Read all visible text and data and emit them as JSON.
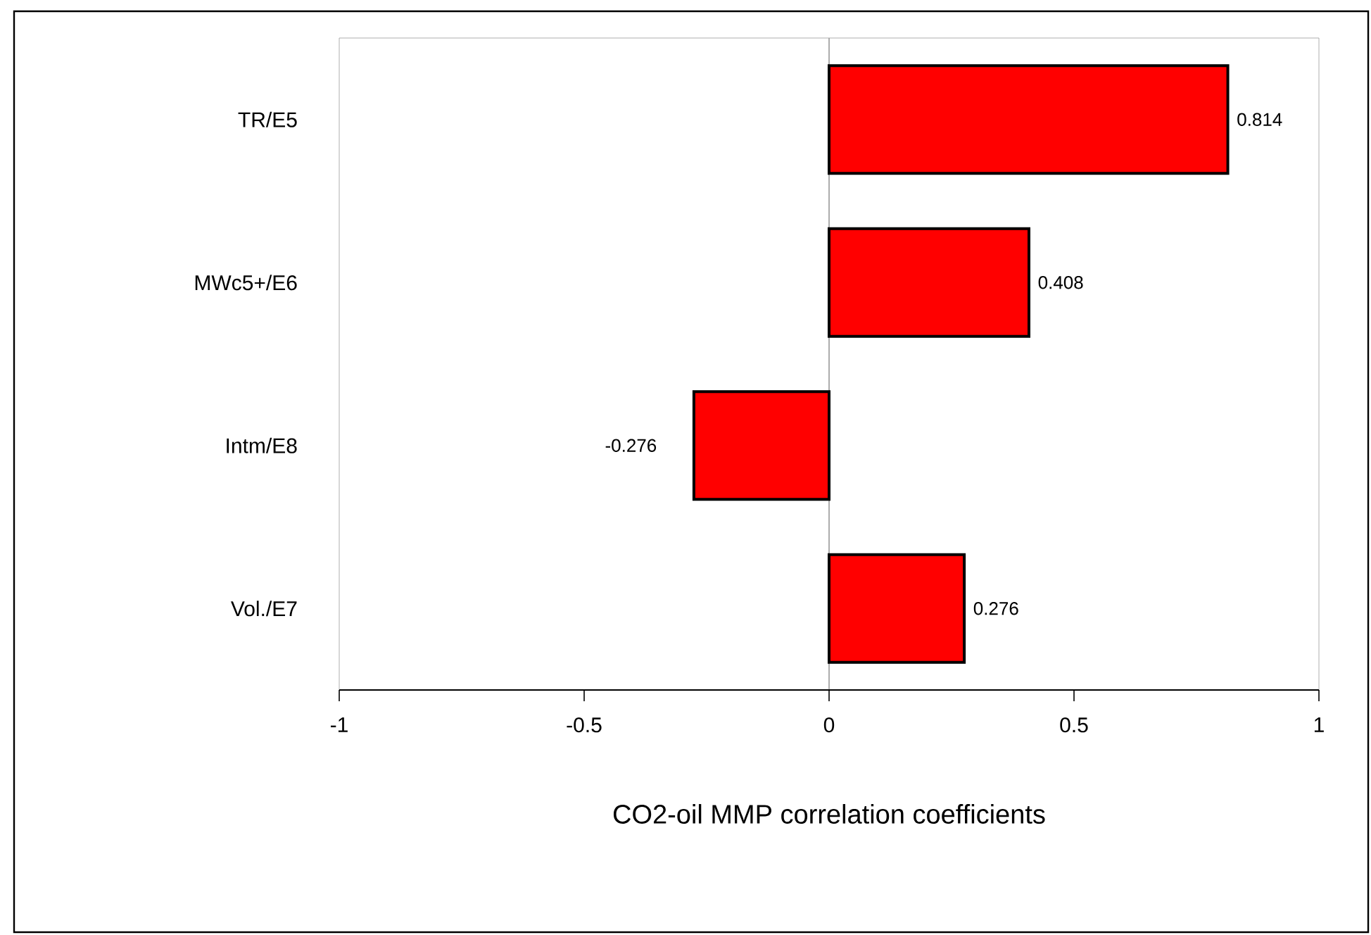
{
  "chart_data": {
    "type": "bar",
    "orientation": "horizontal",
    "categories": [
      "TR/E5",
      "MWc5+/E6",
      "Intm/E8",
      "Vol./E7"
    ],
    "values": [
      0.814,
      0.408,
      -0.276,
      0.276
    ],
    "color": "#ff0000",
    "xlim": [
      -1,
      1
    ],
    "xticks": [
      -1,
      -0.5,
      0,
      0.5,
      1
    ],
    "data_labels": true,
    "xlabel": "CO2-oil MMP correlation coefficients"
  }
}
